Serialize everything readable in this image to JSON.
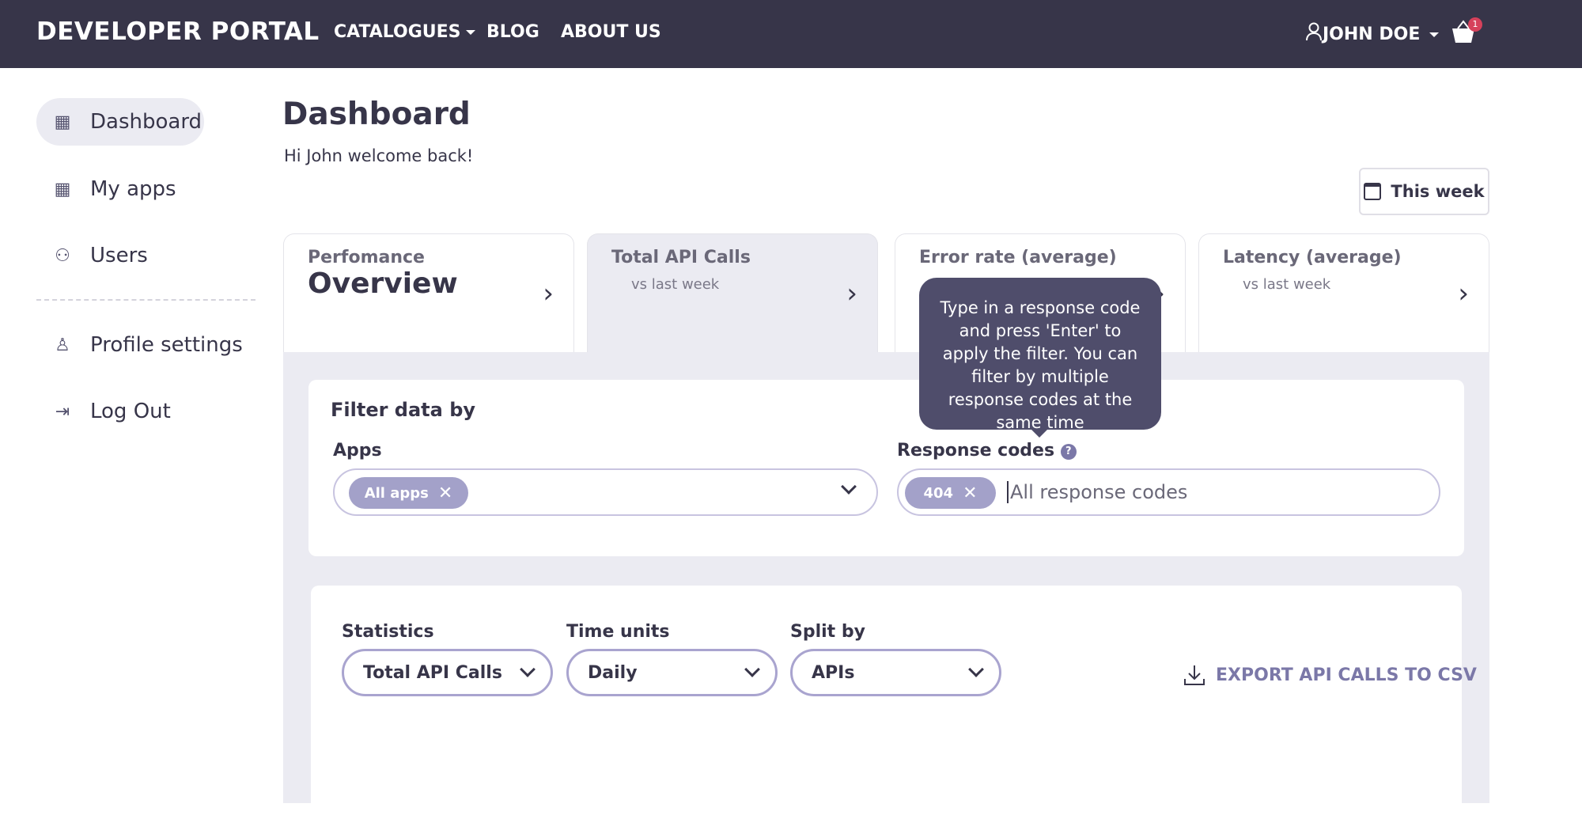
{
  "header": {
    "logo": "DEVELOPER PORTAL",
    "nav": [
      {
        "label": "CATALOGUES"
      },
      {
        "label": "BLOG"
      },
      {
        "label": "ABOUT US"
      }
    ],
    "user": "JOHN DOE",
    "cart_count": "1"
  },
  "sidebar": {
    "items": [
      {
        "label": "Dashboard",
        "icon": "grid-icon",
        "active": true
      },
      {
        "label": "My apps",
        "icon": "apps-icon"
      },
      {
        "label": "Users",
        "icon": "users-icon"
      },
      {
        "label": "Profile settings",
        "icon": "user-icon"
      },
      {
        "label": "Log Out",
        "icon": "logout-icon"
      }
    ]
  },
  "main": {
    "title": "Dashboard",
    "welcome": "Hi John welcome back!",
    "period": "This week",
    "cards": [
      {
        "title": "Perfomance",
        "big": "Overview"
      },
      {
        "title": "Total API Calls",
        "sub": "vs last week"
      },
      {
        "title": "Error rate (average)"
      },
      {
        "title": "Latency (average)",
        "sub": "vs last week"
      }
    ],
    "filter": {
      "title": "Filter data by",
      "apps_label": "Apps",
      "apps_chip": "All apps",
      "codes_label": "Response codes",
      "codes_chip": "404",
      "codes_placeholder": "All response codes",
      "tooltip": "Type in a response code and press 'Enter' to apply the filter. You can filter by multiple response codes at the same time"
    },
    "stats": {
      "statistics_label": "Statistics",
      "statistics_value": "Total API Calls",
      "time_label": "Time units",
      "time_value": "Daily",
      "split_label": "Split by",
      "split_value": "APIs",
      "export": "EXPORT API CALLS TO CSV"
    }
  },
  "colors": {
    "header": "#373549",
    "accent": "#7b78a8",
    "chip": "#a3a1c9",
    "tooltip": "#4f4d6b",
    "badge": "#d6415b"
  }
}
